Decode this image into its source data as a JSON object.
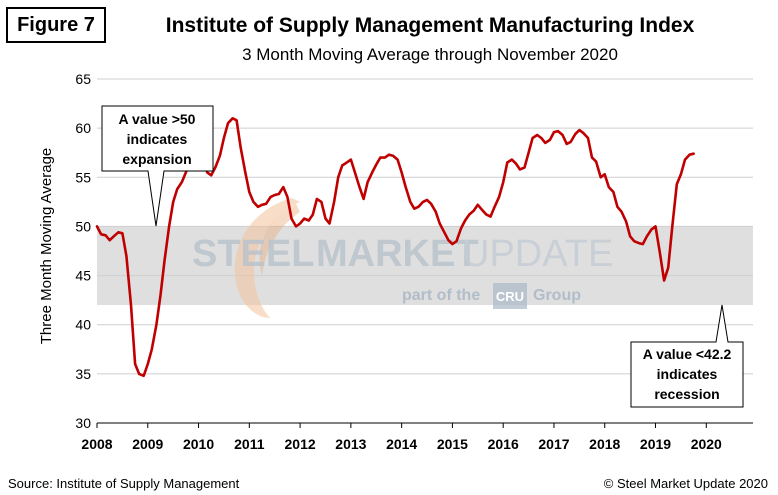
{
  "figure_label": "Figure 7",
  "title": "Institute of Supply Management Manufacturing Index",
  "subtitle": "3 Month Moving Average through November 2020",
  "source": "Source: Institute of Supply Management",
  "copyright": "© Steel Market Update 2020",
  "watermark": {
    "main_left": "STEEL",
    "main_middle": "MARKET",
    "main_right": "UPDATE",
    "sub_left": "part of the",
    "sub_logo": "CRU",
    "sub_right": "Group"
  },
  "annotations": {
    "expansion": [
      "A value >50",
      "indicates",
      "expansion"
    ],
    "recession": [
      "A value <42.2",
      "indicates",
      "recession"
    ]
  },
  "colors": {
    "line": "#c00000",
    "band": "#d9d9d9",
    "watermark_text": "#b8c2cc",
    "watermark_logo": "#aab8c6",
    "swoosh": "#f2c29a"
  },
  "chart_data": {
    "type": "line",
    "ylabel": "Three Month Moving Average",
    "xlabel": "",
    "ylim": [
      30,
      65
    ],
    "yticks": [
      30,
      35,
      40,
      45,
      50,
      55,
      60,
      65
    ],
    "xlim": [
      2008,
      2020.92
    ],
    "xticks": [
      "2008",
      "2009",
      "2010",
      "2011",
      "2012",
      "2013",
      "2014",
      "2015",
      "2016",
      "2017",
      "2018",
      "2019",
      "2020"
    ],
    "grid": "horizontal",
    "band": {
      "from": 42,
      "to": 50
    },
    "series": [
      {
        "points": [
          [
            2008.0,
            50.0
          ],
          [
            2008.08,
            49.2
          ],
          [
            2008.17,
            49.1
          ],
          [
            2008.25,
            48.6
          ],
          [
            2008.33,
            49.0
          ],
          [
            2008.42,
            49.4
          ],
          [
            2008.5,
            49.3
          ],
          [
            2008.58,
            47.0
          ],
          [
            2008.67,
            42.0
          ],
          [
            2008.75,
            36.0
          ],
          [
            2008.83,
            35.0
          ],
          [
            2008.92,
            34.8
          ],
          [
            2009.0,
            36.0
          ],
          [
            2009.08,
            37.5
          ],
          [
            2009.17,
            40.0
          ],
          [
            2009.25,
            43.0
          ],
          [
            2009.33,
            46.5
          ],
          [
            2009.42,
            50.0
          ],
          [
            2009.5,
            52.5
          ],
          [
            2009.58,
            53.8
          ],
          [
            2009.67,
            54.5
          ],
          [
            2009.75,
            55.5
          ],
          [
            2009.83,
            56.5
          ],
          [
            2009.92,
            58.2
          ],
          [
            2010.0,
            59.0
          ],
          [
            2010.08,
            57.0
          ],
          [
            2010.17,
            55.5
          ],
          [
            2010.25,
            55.2
          ],
          [
            2010.33,
            56.0
          ],
          [
            2010.42,
            57.2
          ],
          [
            2010.5,
            59.0
          ],
          [
            2010.58,
            60.5
          ],
          [
            2010.67,
            61.0
          ],
          [
            2010.75,
            60.8
          ],
          [
            2010.83,
            58.0
          ],
          [
            2010.92,
            55.5
          ],
          [
            2011.0,
            53.5
          ],
          [
            2011.08,
            52.5
          ],
          [
            2011.17,
            52.0
          ],
          [
            2011.25,
            52.2
          ],
          [
            2011.33,
            52.3
          ],
          [
            2011.42,
            53.0
          ],
          [
            2011.5,
            53.2
          ],
          [
            2011.58,
            53.3
          ],
          [
            2011.67,
            54.0
          ],
          [
            2011.75,
            53.0
          ],
          [
            2011.83,
            50.8
          ],
          [
            2011.92,
            50.0
          ],
          [
            2012.0,
            50.3
          ],
          [
            2012.08,
            50.8
          ],
          [
            2012.17,
            50.6
          ],
          [
            2012.25,
            51.2
          ],
          [
            2012.33,
            52.8
          ],
          [
            2012.42,
            52.5
          ],
          [
            2012.5,
            50.8
          ],
          [
            2012.58,
            50.3
          ],
          [
            2012.67,
            52.5
          ],
          [
            2012.75,
            55.0
          ],
          [
            2012.83,
            56.2
          ],
          [
            2012.92,
            56.5
          ],
          [
            2013.0,
            56.8
          ],
          [
            2013.08,
            55.5
          ],
          [
            2013.17,
            54.0
          ],
          [
            2013.25,
            52.8
          ],
          [
            2013.33,
            54.5
          ],
          [
            2013.42,
            55.5
          ],
          [
            2013.5,
            56.3
          ],
          [
            2013.58,
            57.0
          ],
          [
            2013.67,
            57.0
          ],
          [
            2013.75,
            57.3
          ],
          [
            2013.83,
            57.2
          ],
          [
            2013.92,
            56.8
          ],
          [
            2014.0,
            55.5
          ],
          [
            2014.08,
            54.0
          ],
          [
            2014.17,
            52.5
          ],
          [
            2014.25,
            51.8
          ],
          [
            2014.33,
            52.0
          ],
          [
            2014.42,
            52.5
          ],
          [
            2014.5,
            52.7
          ],
          [
            2014.58,
            52.3
          ],
          [
            2014.67,
            51.5
          ],
          [
            2014.75,
            50.3
          ],
          [
            2014.83,
            49.5
          ],
          [
            2014.92,
            48.6
          ],
          [
            2015.0,
            48.2
          ],
          [
            2015.08,
            48.5
          ],
          [
            2015.17,
            49.8
          ],
          [
            2015.25,
            50.6
          ],
          [
            2015.33,
            51.2
          ],
          [
            2015.42,
            51.6
          ],
          [
            2015.5,
            52.2
          ],
          [
            2015.58,
            51.7
          ],
          [
            2015.67,
            51.2
          ],
          [
            2015.75,
            51.0
          ],
          [
            2015.83,
            52.0
          ],
          [
            2015.92,
            53.0
          ],
          [
            2016.0,
            54.5
          ],
          [
            2016.08,
            56.5
          ],
          [
            2016.17,
            56.8
          ],
          [
            2016.25,
            56.4
          ],
          [
            2016.33,
            55.8
          ],
          [
            2016.42,
            56.0
          ],
          [
            2016.5,
            57.5
          ],
          [
            2016.58,
            59.0
          ],
          [
            2016.67,
            59.3
          ],
          [
            2016.75,
            59.0
          ],
          [
            2016.83,
            58.5
          ],
          [
            2016.92,
            58.8
          ],
          [
            2017.0,
            59.6
          ],
          [
            2017.08,
            59.7
          ],
          [
            2017.17,
            59.3
          ],
          [
            2017.25,
            58.4
          ],
          [
            2017.33,
            58.6
          ],
          [
            2017.42,
            59.4
          ],
          [
            2017.5,
            59.8
          ],
          [
            2017.58,
            59.5
          ],
          [
            2017.67,
            59.0
          ],
          [
            2017.75,
            57.0
          ],
          [
            2017.83,
            56.6
          ],
          [
            2017.92,
            55.0
          ],
          [
            2018.0,
            55.3
          ],
          [
            2018.08,
            54.0
          ],
          [
            2018.17,
            53.5
          ],
          [
            2018.25,
            52.0
          ],
          [
            2018.33,
            51.5
          ],
          [
            2018.42,
            50.5
          ],
          [
            2018.5,
            49.0
          ],
          [
            2018.58,
            48.5
          ],
          [
            2018.67,
            48.3
          ],
          [
            2018.75,
            48.2
          ],
          [
            2018.83,
            49.0
          ],
          [
            2018.92,
            49.7
          ],
          [
            2019.0,
            50.0
          ],
          [
            2019.08,
            47.5
          ],
          [
            2019.17,
            44.5
          ],
          [
            2019.25,
            45.8
          ],
          [
            2019.33,
            50.0
          ],
          [
            2019.42,
            54.3
          ],
          [
            2019.5,
            55.3
          ],
          [
            2019.58,
            56.8
          ],
          [
            2019.67,
            57.3
          ],
          [
            2019.75,
            57.4
          ]
        ]
      }
    ]
  }
}
